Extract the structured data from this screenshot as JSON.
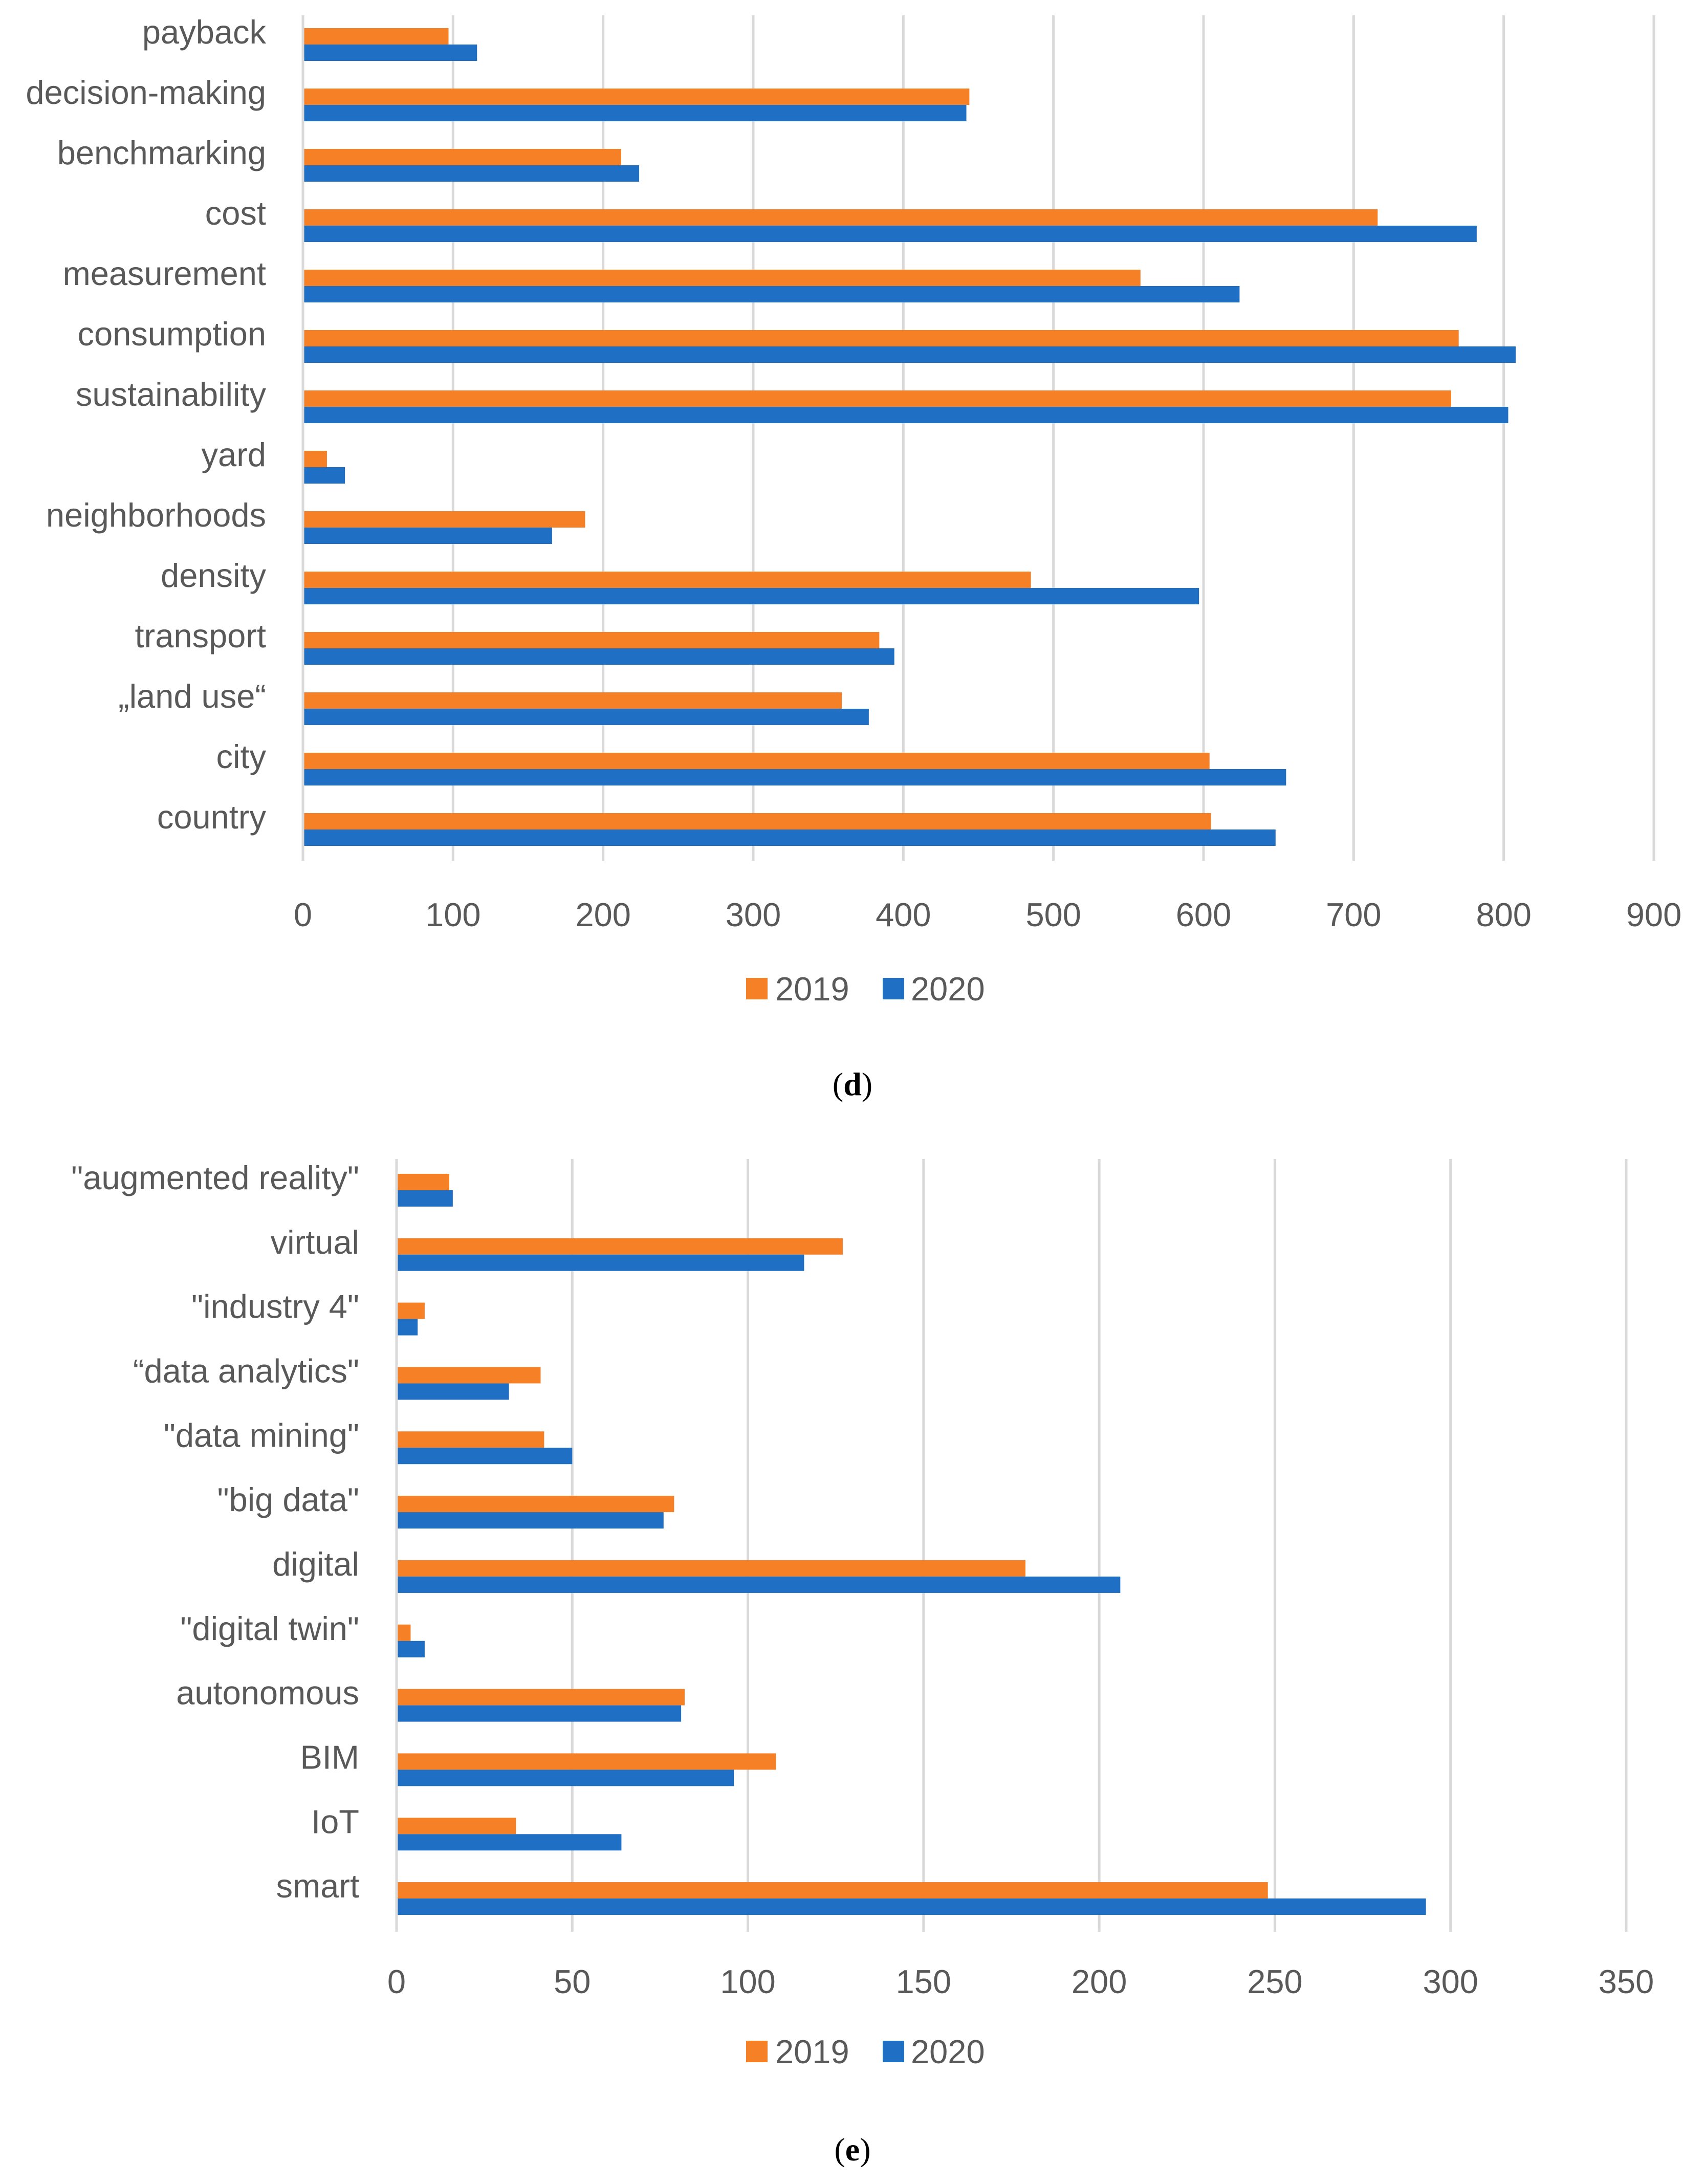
{
  "chart_data": [
    {
      "type": "bar",
      "orientation": "horizontal",
      "panel_label": "d",
      "categories": [
        "payback",
        "decision-making",
        "benchmarking",
        "cost",
        "measurement",
        "consumption",
        "sustainability",
        "yard",
        "neighborhoods",
        "density",
        "transport",
        "„land use“",
        "city",
        "country"
      ],
      "series": [
        {
          "name": "2019",
          "color": "#f58025",
          "values": [
            97,
            444,
            212,
            716,
            558,
            770,
            765,
            16,
            188,
            485,
            384,
            359,
            604,
            605
          ]
        },
        {
          "name": "2020",
          "color": "#1f6fc5",
          "values": [
            116,
            442,
            224,
            782,
            624,
            808,
            803,
            28,
            166,
            597,
            394,
            377,
            655,
            648
          ]
        }
      ],
      "x_ticks": [
        "0",
        "100",
        "200",
        "300",
        "400",
        "500",
        "600",
        "700",
        "800",
        "900"
      ],
      "xlim": [
        0,
        900
      ],
      "grid": true,
      "legend": "bottom-center",
      "title": "",
      "xlabel": "",
      "ylabel": ""
    },
    {
      "type": "bar",
      "orientation": "horizontal",
      "panel_label": "e",
      "categories": [
        "\"augmented reality\"",
        "virtual",
        "\"industry 4\"",
        "“data analytics\"",
        "\"data mining\"",
        "\"big data\"",
        "digital",
        "\"digital twin\"",
        "autonomous",
        "BIM",
        "IoT",
        "smart"
      ],
      "series": [
        {
          "name": "2019",
          "color": "#f58025",
          "values": [
            15,
            127,
            8,
            41,
            42,
            79,
            179,
            4,
            82,
            108,
            34,
            248
          ]
        },
        {
          "name": "2020",
          "color": "#1f6fc5",
          "values": [
            16,
            116,
            6,
            32,
            50,
            76,
            206,
            8,
            81,
            96,
            64,
            293
          ]
        }
      ],
      "x_ticks": [
        "0",
        "50",
        "100",
        "150",
        "200",
        "250",
        "300",
        "350"
      ],
      "xlim": [
        0,
        350
      ],
      "grid": true,
      "legend": "bottom-center",
      "title": "",
      "xlabel": "",
      "ylabel": ""
    }
  ]
}
